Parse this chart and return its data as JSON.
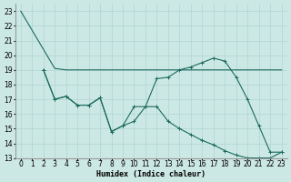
{
  "xlabel": "Humidex (Indice chaleur)",
  "background_color": "#cce8e4",
  "grid_color": "#b0d4d0",
  "line_color": "#1a6b5e",
  "xlim": [
    -0.5,
    23.5
  ],
  "ylim": [
    13,
    23.5
  ],
  "yticks": [
    13,
    14,
    15,
    16,
    17,
    18,
    19,
    20,
    21,
    22,
    23
  ],
  "xticks": [
    0,
    1,
    2,
    3,
    4,
    5,
    6,
    7,
    8,
    9,
    10,
    11,
    12,
    13,
    14,
    15,
    16,
    17,
    18,
    19,
    20,
    21,
    22,
    23
  ],
  "line1_x": [
    0,
    1,
    2,
    3,
    4,
    5,
    6,
    7,
    8,
    9,
    10,
    11,
    12,
    13,
    14,
    15,
    16,
    17,
    18,
    19,
    20,
    21,
    22,
    23
  ],
  "line1_y": [
    23,
    21.7,
    20.4,
    19.1,
    19.0,
    19.0,
    19.0,
    19.0,
    19.0,
    19.0,
    19.0,
    19.0,
    19.0,
    19.0,
    19.0,
    19.0,
    19.0,
    19.0,
    19.0,
    19.0,
    19.0,
    19.0,
    19.0,
    19.0
  ],
  "line2_x": [
    2,
    3,
    4,
    5,
    6,
    7,
    8,
    9,
    10,
    11,
    12,
    13,
    14,
    15,
    16,
    17,
    18,
    19,
    20,
    21,
    22,
    23
  ],
  "line2_y": [
    19.0,
    17.0,
    17.2,
    16.6,
    16.6,
    17.1,
    14.8,
    15.2,
    16.5,
    16.5,
    18.4,
    18.5,
    19.0,
    19.2,
    19.5,
    19.8,
    19.6,
    18.5,
    17.0,
    15.2,
    13.4,
    13.4
  ],
  "line3_x": [
    2,
    3,
    4,
    5,
    6,
    7,
    8,
    9,
    10,
    11,
    12,
    13,
    14,
    15,
    16,
    17,
    18,
    19,
    20,
    21,
    22,
    23
  ],
  "line3_y": [
    19.0,
    17.0,
    17.2,
    16.6,
    16.6,
    17.1,
    14.8,
    15.2,
    15.5,
    16.5,
    16.5,
    15.5,
    15.0,
    14.6,
    14.2,
    13.9,
    13.5,
    13.2,
    13.0,
    13.0,
    13.0,
    13.4
  ],
  "fontsize_label": 6,
  "fontsize_tick": 5.5
}
